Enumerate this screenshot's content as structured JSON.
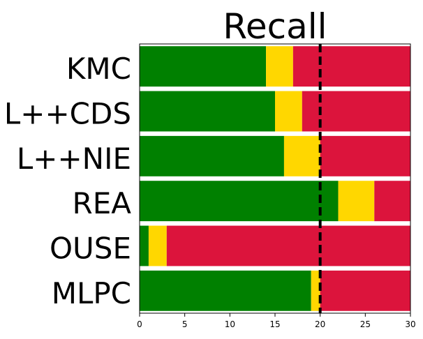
{
  "chart_data": {
    "type": "bar",
    "orientation": "horizontal",
    "stacked": true,
    "title": "Recall",
    "xlabel": "",
    "ylabel": "",
    "categories": [
      "KMC",
      "L++CDS",
      "L++NIE",
      "REA",
      "OUSE",
      "MLPC"
    ],
    "segments": [
      {
        "color": "#008000",
        "values": [
          14,
          15,
          16,
          22,
          1,
          19
        ]
      },
      {
        "color": "#FFD700",
        "values": [
          3,
          3,
          4,
          4,
          2,
          1
        ]
      },
      {
        "color": "#DC143C",
        "values": [
          13,
          12,
          10,
          4,
          27,
          10
        ]
      }
    ],
    "xlim": [
      0,
      30
    ],
    "xticks": [
      "0",
      "5",
      "10",
      "15",
      "20",
      "25",
      "30"
    ],
    "reference_line": {
      "x": 20,
      "style": "dashed",
      "color": "#000000"
    },
    "grid": false,
    "legend": "none"
  }
}
